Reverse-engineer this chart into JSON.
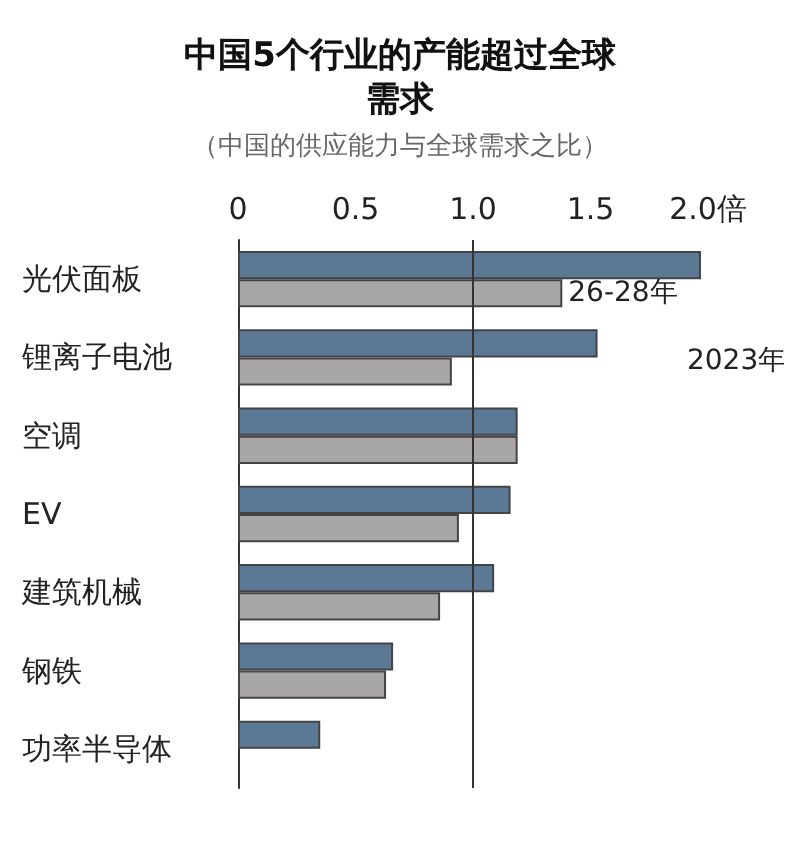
{
  "chart_data": {
    "type": "bar",
    "orientation": "horizontal",
    "title": "中国5个行业的产能超过全球需求",
    "subtitle": "（中国的供应能力与全球需求之比）",
    "categories": [
      "光伏面板",
      "锂离子电池",
      "空调",
      "EV",
      "建筑机械",
      "钢铁",
      "功率半导体"
    ],
    "series": [
      {
        "name": "2023年",
        "color": "#5b7894",
        "values": [
          1.97,
          1.53,
          1.19,
          1.16,
          1.09,
          0.66,
          0.35
        ]
      },
      {
        "name": "26-28年",
        "color": "#a8a6a6",
        "values": [
          1.38,
          0.91,
          1.19,
          0.94,
          0.86,
          0.63,
          null
        ]
      }
    ],
    "xlim": [
      0,
      2
    ],
    "xticks": [
      0,
      0.5,
      {
        "value": 1,
        "label": "1.0"
      },
      1.5,
      {
        "value": 2,
        "label": "2.0倍"
      }
    ],
    "ref_lines": [
      {
        "axis": "x",
        "value": 1,
        "color": "#333333"
      }
    ],
    "grid": false,
    "legend": false
  }
}
